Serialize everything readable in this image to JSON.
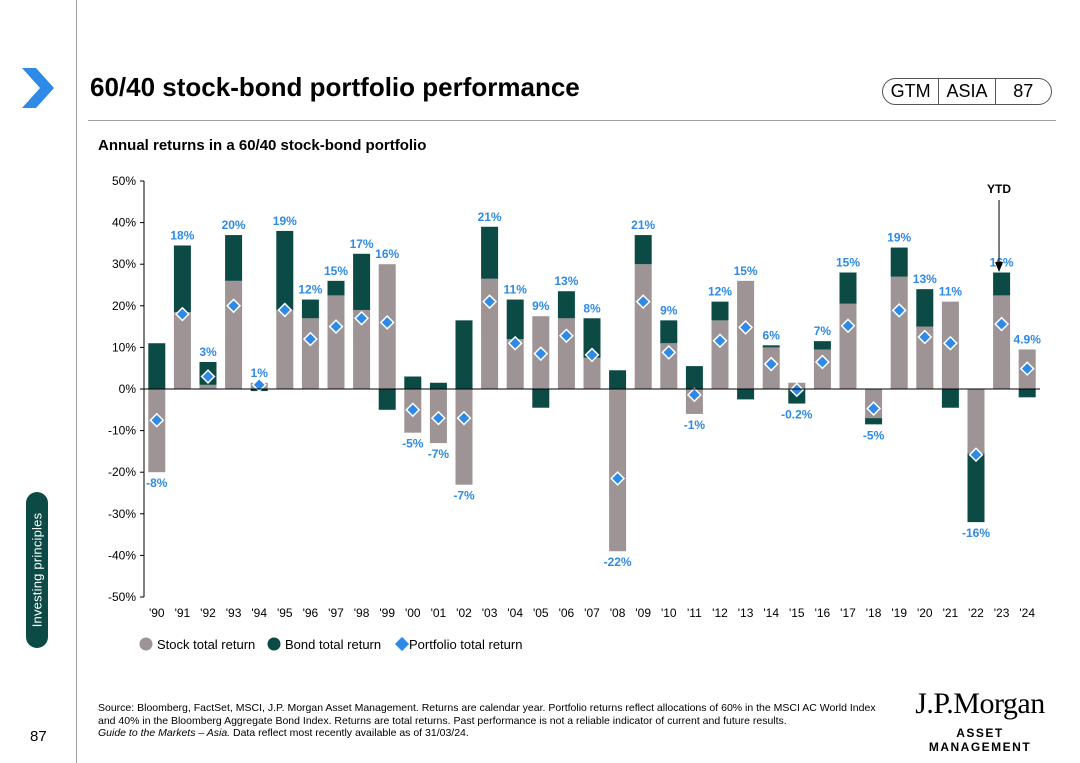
{
  "header": {
    "title": "60/40 stock-bond portfolio performance",
    "badge": [
      "GTM",
      "ASIA",
      "87"
    ]
  },
  "sidebar": {
    "section_label": "Investing principles",
    "page_number": "87"
  },
  "colors": {
    "stock": "#9e9496",
    "bond": "#0b4a45",
    "portfolio": "#2e8ae6",
    "label": "#2e8ae6",
    "dark": "#0b4a45"
  },
  "chart_data": {
    "type": "bar",
    "title": "Annual returns in a 60/40 stock-bond portfolio",
    "categories": [
      "'90",
      "'91",
      "'92",
      "'93",
      "'94",
      "'95",
      "'96",
      "'97",
      "'98",
      "'99",
      "'00",
      "'01",
      "'02",
      "'03",
      "'04",
      "'05",
      "'06",
      "'07",
      "'08",
      "'09",
      "'10",
      "'11",
      "'12",
      "'13",
      "'14",
      "'15",
      "'16",
      "'17",
      "'18",
      "'19",
      "'20",
      "'21",
      "'22",
      "'23",
      "'24"
    ],
    "series": [
      {
        "name": "Stock total return",
        "values": [
          -20,
          18.5,
          1,
          26,
          1.5,
          19,
          17,
          22.5,
          19,
          30,
          -10.5,
          -13,
          -23,
          26.5,
          12,
          17.5,
          17,
          7.5,
          -39,
          30,
          11,
          -6,
          16.5,
          26,
          10,
          1.5,
          9.5,
          20.5,
          -7,
          27,
          15,
          21,
          -15.5,
          22.5,
          9.5
        ]
      },
      {
        "name": "Bond total return",
        "values": [
          11,
          16,
          5.5,
          11,
          -0.5,
          19,
          4.5,
          3.5,
          13.5,
          -5,
          3,
          1.5,
          16.5,
          12.5,
          9.5,
          -4.5,
          6.5,
          9.5,
          4.5,
          7,
          5.5,
          5.5,
          4.5,
          -2.5,
          0.5,
          -3.5,
          2,
          7.5,
          -1.5,
          7,
          9,
          -4.5,
          -16.5,
          5.5,
          -2
        ]
      },
      {
        "name": "Portfolio total return",
        "values": [
          -7.5,
          18,
          3,
          20,
          1,
          19,
          12,
          15,
          17,
          16,
          -5,
          -7,
          -7,
          21,
          11,
          8.5,
          12.8,
          8.2,
          -21.5,
          21,
          8.8,
          -1.4,
          11.6,
          14.8,
          6,
          -0.2,
          6.5,
          15.2,
          -4.7,
          18.9,
          12.5,
          11,
          -15.8,
          15.6,
          4.9
        ]
      }
    ],
    "data_labels": [
      "-8%",
      "18%",
      "3%",
      "20%",
      "1%",
      "19%",
      "12%",
      "15%",
      "17%",
      "16%",
      "-5%",
      "-7%",
      "-7%",
      "21%",
      "11%",
      "9%",
      "13%",
      "8%",
      "-22%",
      "21%",
      "9%",
      "-1%",
      "12%",
      "15%",
      "6%",
      "-0.2%",
      "7%",
      "15%",
      "-5%",
      "19%",
      "13%",
      "11%",
      "-16%",
      "16%",
      "4.9%"
    ],
    "ylim": [
      -50,
      50
    ],
    "yticks": [
      "-50%",
      "-40%",
      "-30%",
      "-20%",
      "-10%",
      "0%",
      "10%",
      "20%",
      "30%",
      "40%",
      "50%"
    ],
    "ytick_values": [
      -50,
      -40,
      -30,
      -20,
      -10,
      0,
      10,
      20,
      30,
      40,
      50
    ],
    "annotation": "YTD",
    "legend": [
      "Stock total return",
      "Bond total return",
      "Portfolio total return"
    ],
    "legend_position": "bottom-left",
    "xlabel": "",
    "ylabel": ""
  },
  "footnote": {
    "source": "Source: Bloomberg, FactSet, MSCI, J.P. Morgan Asset Management. Returns are calendar year. Portfolio returns reflect allocations of 60% in the MSCI AC World Index and 40% in the Bloomberg Aggregate Bond Index. Returns are total returns. Past performance is not a reliable indicator of current and future results.",
    "guide": "Guide to the Markets – Asia.",
    "data_note": " Data reflect most recently available as of 31/03/24."
  },
  "logo": {
    "line1": "J.P.Morgan",
    "line2": "ASSET MANAGEMENT"
  }
}
